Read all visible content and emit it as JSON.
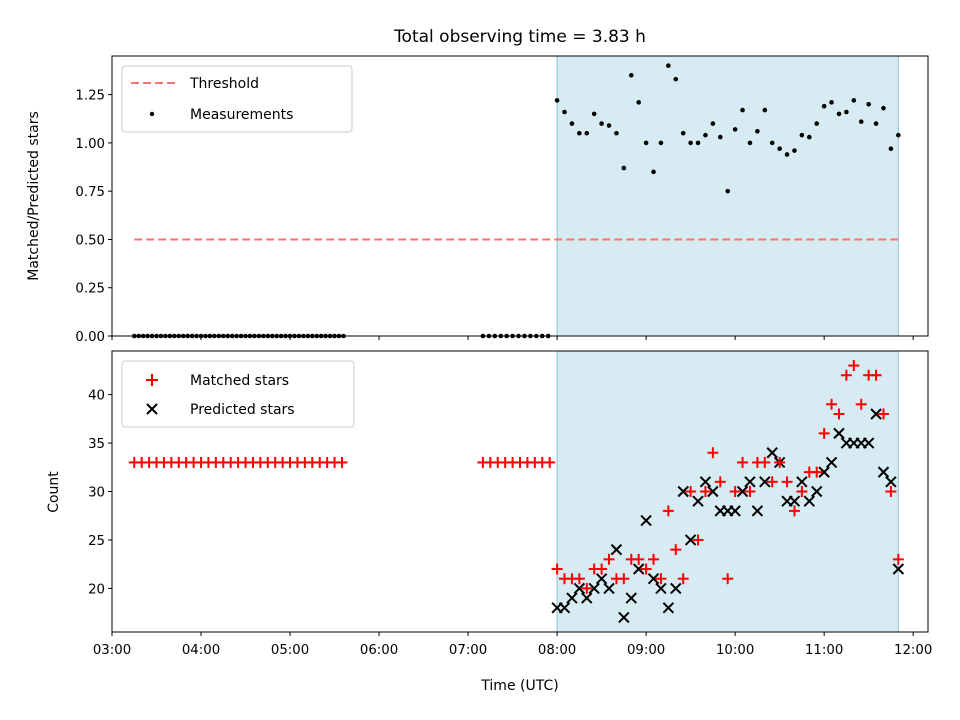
{
  "chart_data": [
    {
      "type": "scatter",
      "title": "Total observing time = 3.83 h",
      "xlabel": "",
      "ylabel": "Matched/Predicted stars",
      "xlim": [
        "03:00",
        "12:10"
      ],
      "ylim": [
        0,
        1.45
      ],
      "y_ticks": [
        "0.00",
        "0.25",
        "0.50",
        "0.75",
        "1.00",
        "1.25"
      ],
      "shaded_span": {
        "from": "08:00",
        "to": "11:50",
        "color": "#add8e6"
      },
      "legend": {
        "placement": "top-left",
        "entries": [
          "Threshold",
          "Measurements"
        ]
      },
      "series": [
        {
          "name": "Threshold",
          "kind": "dashed-line",
          "color": "#ff7070",
          "x": [
            "03:15",
            "11:50"
          ],
          "y": [
            0.5,
            0.5
          ]
        },
        {
          "name": "Measurements",
          "kind": "dots",
          "color": "#000000",
          "x": [
            "03:15",
            "03:18",
            "03:21",
            "03:24",
            "03:27",
            "03:30",
            "03:33",
            "03:36",
            "03:39",
            "03:42",
            "03:45",
            "03:48",
            "03:51",
            "03:54",
            "03:57",
            "04:00",
            "04:03",
            "04:06",
            "04:09",
            "04:12",
            "04:15",
            "04:18",
            "04:21",
            "04:24",
            "04:27",
            "04:30",
            "04:33",
            "04:36",
            "04:39",
            "04:42",
            "04:45",
            "04:48",
            "04:51",
            "04:54",
            "04:57",
            "05:00",
            "05:03",
            "05:06",
            "05:09",
            "05:12",
            "05:15",
            "05:18",
            "05:21",
            "05:24",
            "05:27",
            "05:30",
            "05:33",
            "05:36",
            "07:10",
            "07:14",
            "07:18",
            "07:22",
            "07:26",
            "07:30",
            "07:34",
            "07:38",
            "07:42",
            "07:46",
            "07:50",
            "07:54",
            "08:00",
            "08:05",
            "08:10",
            "08:15",
            "08:20",
            "08:25",
            "08:30",
            "08:35",
            "08:40",
            "08:45",
            "08:50",
            "08:55",
            "09:00",
            "09:05",
            "09:10",
            "09:15",
            "09:20",
            "09:25",
            "09:30",
            "09:35",
            "09:40",
            "09:45",
            "09:50",
            "09:55",
            "10:00",
            "10:05",
            "10:10",
            "10:15",
            "10:20",
            "10:25",
            "10:30",
            "10:35",
            "10:40",
            "10:45",
            "10:50",
            "10:55",
            "11:00",
            "11:05",
            "11:10",
            "11:15",
            "11:20",
            "11:25",
            "11:30",
            "11:35",
            "11:40",
            "11:45",
            "11:50"
          ],
          "y": [
            0,
            0,
            0,
            0,
            0,
            0,
            0,
            0,
            0,
            0,
            0,
            0,
            0,
            0,
            0,
            0,
            0,
            0,
            0,
            0,
            0,
            0,
            0,
            0,
            0,
            0,
            0,
            0,
            0,
            0,
            0,
            0,
            0,
            0,
            0,
            0,
            0,
            0,
            0,
            0,
            0,
            0,
            0,
            0,
            0,
            0,
            0,
            0,
            0,
            0,
            0,
            0,
            0,
            0,
            0,
            0,
            0,
            0,
            0,
            0,
            1.22,
            1.16,
            1.1,
            1.05,
            1.05,
            1.15,
            1.1,
            1.09,
            1.05,
            0.87,
            1.35,
            1.21,
            1.0,
            0.85,
            1.0,
            1.4,
            1.33,
            1.05,
            1.0,
            1.0,
            1.04,
            1.1,
            1.03,
            0.75,
            1.07,
            1.17,
            1.0,
            1.06,
            1.17,
            1.0,
            0.97,
            0.94,
            0.96,
            1.04,
            1.03,
            1.1,
            1.19,
            1.21,
            1.15,
            1.16,
            1.22,
            1.11,
            1.2,
            1.1,
            1.18,
            0.97,
            1.04
          ]
        }
      ]
    },
    {
      "type": "scatter",
      "title": "",
      "xlabel": "Time (UTC)",
      "ylabel": "Count",
      "xlim": [
        "03:00",
        "12:10"
      ],
      "ylim": [
        15.5,
        44.5
      ],
      "x_ticks": [
        "03:00",
        "04:00",
        "05:00",
        "06:00",
        "07:00",
        "08:00",
        "09:00",
        "10:00",
        "11:00",
        "12:00"
      ],
      "y_ticks": [
        "20",
        "25",
        "30",
        "35",
        "40"
      ],
      "shaded_span": {
        "from": "08:00",
        "to": "11:50",
        "color": "#add8e6"
      },
      "legend": {
        "placement": "top-left",
        "entries": [
          "Matched stars",
          "Predicted stars"
        ]
      },
      "series": [
        {
          "name": "Matched stars",
          "kind": "plus",
          "color": "#ff0000",
          "x": [
            "03:15",
            "03:20",
            "03:25",
            "03:30",
            "03:35",
            "03:40",
            "03:45",
            "03:50",
            "03:55",
            "04:00",
            "04:05",
            "04:10",
            "04:15",
            "04:20",
            "04:25",
            "04:30",
            "04:35",
            "04:40",
            "04:45",
            "04:50",
            "04:55",
            "05:00",
            "05:05",
            "05:10",
            "05:15",
            "05:20",
            "05:25",
            "05:30",
            "05:35",
            "07:10",
            "07:15",
            "07:20",
            "07:25",
            "07:30",
            "07:35",
            "07:40",
            "07:45",
            "07:50",
            "07:55",
            "08:00",
            "08:05",
            "08:10",
            "08:15",
            "08:20",
            "08:25",
            "08:30",
            "08:35",
            "08:40",
            "08:45",
            "08:50",
            "08:55",
            "09:00",
            "09:05",
            "09:10",
            "09:15",
            "09:20",
            "09:25",
            "09:30",
            "09:35",
            "09:40",
            "09:45",
            "09:50",
            "09:55",
            "10:00",
            "10:05",
            "10:10",
            "10:15",
            "10:20",
            "10:25",
            "10:30",
            "10:35",
            "10:40",
            "10:45",
            "10:50",
            "10:55",
            "11:00",
            "11:05",
            "11:10",
            "11:15",
            "11:20",
            "11:25",
            "11:30",
            "11:35",
            "11:40",
            "11:45",
            "11:50"
          ],
          "y": [
            33,
            33,
            33,
            33,
            33,
            33,
            33,
            33,
            33,
            33,
            33,
            33,
            33,
            33,
            33,
            33,
            33,
            33,
            33,
            33,
            33,
            33,
            33,
            33,
            33,
            33,
            33,
            33,
            33,
            33,
            33,
            33,
            33,
            33,
            33,
            33,
            33,
            33,
            33,
            22,
            21,
            21,
            21,
            20,
            22,
            22,
            23,
            21,
            21,
            23,
            23,
            22,
            23,
            21,
            28,
            24,
            21,
            30,
            25,
            30,
            34,
            31,
            21,
            30,
            33,
            30,
            33,
            33,
            31,
            33,
            31,
            28,
            30,
            32,
            32,
            36,
            39,
            38,
            42,
            43,
            39,
            42,
            42,
            38,
            30,
            23
          ]
        },
        {
          "name": "Predicted stars",
          "kind": "x",
          "color": "#000000",
          "x": [
            "08:00",
            "08:05",
            "08:10",
            "08:15",
            "08:20",
            "08:25",
            "08:30",
            "08:35",
            "08:40",
            "08:45",
            "08:50",
            "08:55",
            "09:00",
            "09:05",
            "09:10",
            "09:15",
            "09:20",
            "09:25",
            "09:30",
            "09:35",
            "09:40",
            "09:45",
            "09:50",
            "09:55",
            "10:00",
            "10:05",
            "10:10",
            "10:15",
            "10:20",
            "10:25",
            "10:30",
            "10:35",
            "10:40",
            "10:45",
            "10:50",
            "10:55",
            "11:00",
            "11:05",
            "11:10",
            "11:15",
            "11:20",
            "11:25",
            "11:30",
            "11:35",
            "11:40",
            "11:45",
            "11:50"
          ],
          "y": [
            18,
            18,
            19,
            20,
            19,
            20,
            21,
            20,
            24,
            17,
            19,
            22,
            27,
            21,
            20,
            18,
            20,
            30,
            25,
            29,
            31,
            30,
            28,
            28,
            28,
            30,
            31,
            28,
            31,
            34,
            33,
            29,
            29,
            31,
            29,
            30,
            32,
            33,
            36,
            35,
            35,
            35,
            35,
            38,
            32,
            31,
            22
          ]
        }
      ]
    }
  ]
}
